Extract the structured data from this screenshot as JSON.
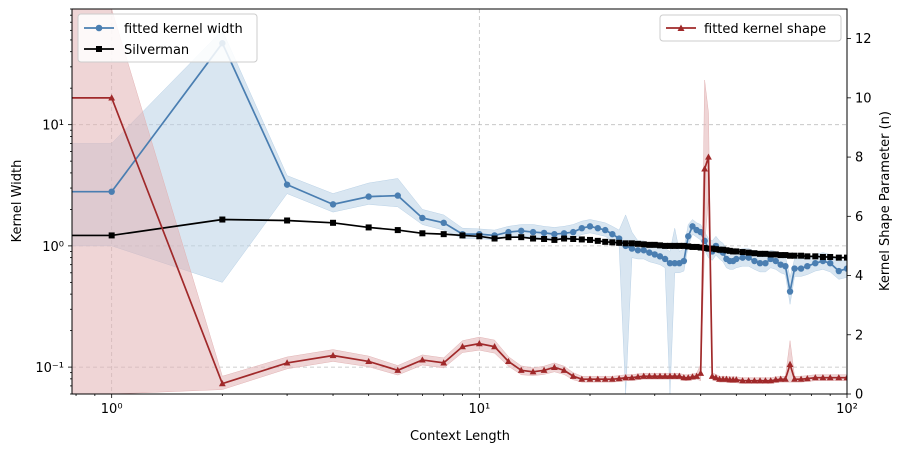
{
  "chart_data": {
    "type": "line",
    "xlabel": "Context Length",
    "ylabel": "Kernel Width",
    "y2label": "Kernel Shape Parameter (n)",
    "xscale": "log",
    "yscale": "log",
    "xlim": [
      0.78,
      100
    ],
    "ylim": [
      0.06,
      90
    ],
    "y2lim": [
      0,
      13
    ],
    "grid": true,
    "x_ticks": [
      {
        "value": 1,
        "label": "10⁰"
      },
      {
        "value": 10,
        "label": "10¹"
      },
      {
        "value": 100,
        "label": "10²"
      }
    ],
    "y_ticks": [
      {
        "value": 0.1,
        "label": "10⁻¹"
      },
      {
        "value": 1,
        "label": "10⁰"
      },
      {
        "value": 10,
        "label": "10¹"
      }
    ],
    "y2_ticks": [
      0,
      2,
      4,
      6,
      8,
      10,
      12
    ],
    "legend_left": {
      "placement": "upper-left",
      "entries": [
        "fitted kernel width",
        "Silverman"
      ]
    },
    "legend_right": {
      "placement": "upper-right",
      "entries": [
        "fitted kernel shape"
      ]
    },
    "colors": {
      "width": "#4a7eb1",
      "silverman": "#000000",
      "shape": "#a0292a",
      "width_band": "#b9d1e6",
      "shape_band": "#e2b3b4"
    },
    "series": [
      {
        "name": "fitted kernel width",
        "axis": "left",
        "marker": "circle",
        "x": [
          0.78,
          1,
          2,
          3,
          4,
          5,
          6,
          7,
          8,
          9,
          10,
          11,
          12,
          13,
          14,
          15,
          16,
          17,
          18,
          19,
          20,
          21,
          22,
          23,
          24,
          25,
          26,
          27,
          28,
          29,
          30,
          31,
          32,
          33,
          34,
          35,
          36,
          37,
          38,
          39,
          40,
          41,
          42,
          43,
          44,
          45,
          46,
          47,
          48,
          49,
          50,
          52,
          54,
          56,
          58,
          60,
          62,
          64,
          66,
          68,
          70,
          72,
          75,
          78,
          82,
          86,
          90,
          95,
          100
        ],
        "y": [
          2.8,
          2.8,
          47,
          3.2,
          2.2,
          2.55,
          2.6,
          1.7,
          1.55,
          1.25,
          1.25,
          1.22,
          1.3,
          1.33,
          1.3,
          1.28,
          1.25,
          1.27,
          1.3,
          1.4,
          1.45,
          1.4,
          1.35,
          1.25,
          1.15,
          1.0,
          0.95,
          0.92,
          0.92,
          0.88,
          0.85,
          0.82,
          0.78,
          0.72,
          0.72,
          0.72,
          0.75,
          1.2,
          1.45,
          1.35,
          1.3,
          1.1,
          0.95,
          0.9,
          1.0,
          0.92,
          0.88,
          0.78,
          0.75,
          0.75,
          0.78,
          0.8,
          0.8,
          0.75,
          0.72,
          0.72,
          0.78,
          0.75,
          0.7,
          0.68,
          0.42,
          0.65,
          0.65,
          0.68,
          0.72,
          0.75,
          0.72,
          0.62,
          0.65
        ],
        "band_upper": [
          7.0,
          7.0,
          60,
          3.8,
          2.7,
          3.3,
          3.6,
          2.0,
          1.8,
          1.4,
          1.38,
          1.35,
          1.45,
          1.5,
          1.5,
          1.45,
          1.42,
          1.45,
          1.5,
          1.6,
          1.65,
          1.6,
          1.55,
          1.45,
          1.35,
          1.8,
          1.3,
          1.1,
          1.1,
          1.05,
          1.02,
          1.0,
          0.95,
          0.9,
          1.4,
          0.9,
          0.95,
          1.5,
          1.65,
          1.55,
          1.5,
          1.3,
          1.15,
          1.1,
          1.2,
          1.1,
          1.05,
          0.95,
          0.9,
          0.9,
          0.92,
          0.95,
          0.95,
          0.9,
          0.86,
          0.86,
          0.92,
          0.9,
          0.84,
          0.82,
          0.55,
          0.78,
          0.78,
          0.8,
          0.85,
          0.88,
          0.85,
          0.74,
          0.78
        ],
        "band_lower": [
          1.0,
          1.0,
          0.5,
          2.7,
          1.9,
          2.2,
          2.1,
          1.5,
          1.35,
          1.15,
          1.15,
          1.12,
          1.18,
          1.2,
          1.18,
          1.15,
          1.12,
          1.14,
          1.16,
          1.24,
          1.28,
          1.24,
          1.2,
          1.1,
          1.0,
          0.06,
          0.8,
          0.78,
          0.78,
          0.74,
          0.72,
          0.7,
          0.66,
          0.06,
          0.6,
          0.6,
          0.62,
          1.0,
          1.25,
          1.18,
          1.12,
          0.92,
          0.8,
          0.76,
          0.84,
          0.78,
          0.74,
          0.66,
          0.64,
          0.64,
          0.66,
          0.68,
          0.68,
          0.64,
          0.61,
          0.61,
          0.66,
          0.64,
          0.6,
          0.58,
          0.33,
          0.56,
          0.56,
          0.58,
          0.62,
          0.64,
          0.61,
          0.53,
          0.55
        ]
      },
      {
        "name": "Silverman",
        "axis": "left",
        "marker": "square",
        "x": [
          0.78,
          1,
          2,
          3,
          4,
          5,
          6,
          7,
          8,
          9,
          10,
          11,
          12,
          13,
          14,
          15,
          16,
          17,
          18,
          19,
          20,
          21,
          22,
          23,
          24,
          25,
          26,
          27,
          28,
          29,
          30,
          31,
          32,
          33,
          34,
          35,
          36,
          37,
          38,
          39,
          40,
          41,
          42,
          43,
          44,
          45,
          46,
          47,
          48,
          49,
          50,
          52,
          54,
          56,
          58,
          60,
          62,
          64,
          66,
          68,
          70,
          72,
          75,
          78,
          82,
          86,
          90,
          95,
          100
        ],
        "y": [
          1.22,
          1.22,
          1.65,
          1.62,
          1.55,
          1.42,
          1.35,
          1.27,
          1.25,
          1.22,
          1.2,
          1.15,
          1.18,
          1.18,
          1.15,
          1.14,
          1.12,
          1.15,
          1.14,
          1.13,
          1.12,
          1.1,
          1.08,
          1.07,
          1.06,
          1.05,
          1.05,
          1.04,
          1.03,
          1.02,
          1.02,
          1.01,
          1.0,
          1.0,
          1.0,
          1.0,
          1.0,
          0.99,
          0.98,
          0.98,
          0.97,
          0.96,
          0.95,
          0.95,
          0.94,
          0.93,
          0.93,
          0.92,
          0.91,
          0.9,
          0.9,
          0.89,
          0.88,
          0.87,
          0.86,
          0.86,
          0.85,
          0.85,
          0.84,
          0.84,
          0.83,
          0.83,
          0.83,
          0.82,
          0.82,
          0.81,
          0.81,
          0.8,
          0.8
        ]
      },
      {
        "name": "fitted kernel shape",
        "axis": "right",
        "marker": "triangle",
        "x": [
          0.78,
          1,
          2,
          3,
          4,
          5,
          6,
          7,
          8,
          9,
          10,
          11,
          12,
          13,
          14,
          15,
          16,
          17,
          18,
          19,
          20,
          21,
          22,
          23,
          24,
          25,
          26,
          27,
          28,
          29,
          30,
          31,
          32,
          33,
          34,
          35,
          36,
          37,
          38,
          39,
          40,
          41,
          42,
          43,
          44,
          45,
          46,
          47,
          48,
          49,
          50,
          52,
          54,
          56,
          58,
          60,
          62,
          64,
          66,
          68,
          70,
          72,
          75,
          78,
          82,
          86,
          90,
          95,
          100
        ],
        "y": [
          10,
          10,
          0.35,
          1.05,
          1.3,
          1.1,
          0.8,
          1.15,
          1.05,
          1.6,
          1.7,
          1.6,
          1.1,
          0.8,
          0.75,
          0.8,
          0.9,
          0.8,
          0.6,
          0.5,
          0.5,
          0.5,
          0.5,
          0.5,
          0.52,
          0.55,
          0.55,
          0.58,
          0.6,
          0.6,
          0.6,
          0.6,
          0.6,
          0.6,
          0.6,
          0.6,
          0.55,
          0.55,
          0.58,
          0.6,
          0.7,
          7.6,
          8.0,
          0.6,
          0.55,
          0.5,
          0.5,
          0.5,
          0.48,
          0.48,
          0.48,
          0.45,
          0.45,
          0.45,
          0.45,
          0.45,
          0.45,
          0.48,
          0.5,
          0.5,
          1.0,
          0.5,
          0.5,
          0.52,
          0.55,
          0.55,
          0.55,
          0.55,
          0.55
        ],
        "band_upper": [
          13,
          13,
          0.6,
          1.25,
          1.5,
          1.28,
          0.96,
          1.32,
          1.22,
          1.8,
          1.92,
          1.82,
          1.26,
          0.95,
          0.88,
          0.94,
          1.05,
          0.94,
          0.72,
          0.6,
          0.6,
          0.6,
          0.6,
          0.6,
          0.62,
          0.65,
          0.65,
          0.68,
          0.7,
          0.7,
          0.7,
          0.7,
          0.7,
          0.7,
          0.7,
          0.7,
          0.65,
          0.65,
          0.68,
          0.7,
          1.0,
          10.6,
          9.5,
          0.72,
          0.66,
          0.6,
          0.6,
          0.6,
          0.58,
          0.58,
          0.58,
          0.55,
          0.55,
          0.55,
          0.55,
          0.55,
          0.55,
          0.58,
          0.6,
          0.6,
          1.8,
          0.6,
          0.6,
          0.62,
          0.65,
          0.65,
          0.65,
          0.65,
          0.65
        ],
        "band_lower": [
          0,
          0,
          0.15,
          0.85,
          1.1,
          0.92,
          0.64,
          0.98,
          0.88,
          1.4,
          1.48,
          1.38,
          0.94,
          0.65,
          0.62,
          0.66,
          0.75,
          0.66,
          0.48,
          0.4,
          0.4,
          0.4,
          0.4,
          0.4,
          0.42,
          0.45,
          0.45,
          0.48,
          0.5,
          0.5,
          0.5,
          0.5,
          0.5,
          0.5,
          0.5,
          0.5,
          0.45,
          0.45,
          0.48,
          0.5,
          0.45,
          5.0,
          6.6,
          0.48,
          0.44,
          0.4,
          0.4,
          0.4,
          0.38,
          0.38,
          0.38,
          0.35,
          0.35,
          0.35,
          0.35,
          0.35,
          0.35,
          0.38,
          0.4,
          0.4,
          0.4,
          0.4,
          0.4,
          0.42,
          0.45,
          0.45,
          0.45,
          0.45,
          0.45
        ]
      }
    ]
  }
}
